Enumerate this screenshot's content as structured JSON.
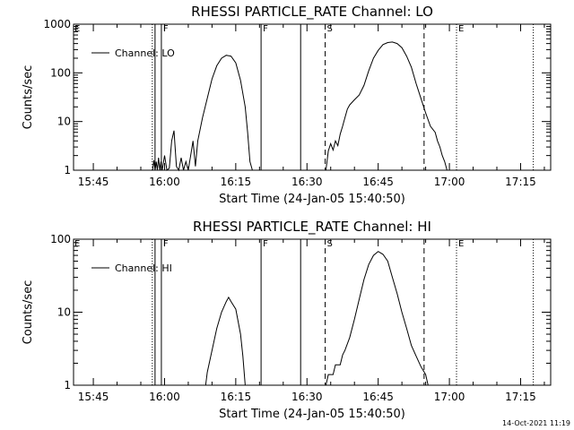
{
  "footer": {
    "timestamp": "14-Oct-2021 11:19"
  },
  "chart_data": [
    {
      "type": "line",
      "title": "RHESSI PARTICLE_RATE Channel: LO",
      "xlabel": "Start Time (24-Jan-05 15:40:50)",
      "ylabel": "Counts/sec",
      "yscale": "log",
      "xlim": [
        "15:40:50",
        "17:21:20"
      ],
      "ylim": [
        1,
        1000
      ],
      "x_ticks": [
        "15:45",
        "16:00",
        "16:15",
        "16:30",
        "16:45",
        "17:00",
        "17:15"
      ],
      "y_ticks": [
        "1",
        "10",
        "100",
        "1000"
      ],
      "legend": {
        "position": "top-left",
        "entries": [
          "Channel: LO"
        ]
      },
      "series": [
        {
          "name": "Channel: LO",
          "points": [
            [
              "15:57:30",
              1.0
            ],
            [
              "15:57:45",
              1.6
            ],
            [
              "15:58:00",
              1.0
            ],
            [
              "15:58:15",
              1.5
            ],
            [
              "15:58:30",
              1.0
            ],
            [
              "15:58:45",
              1.8
            ],
            [
              "15:59:00",
              1.0
            ],
            [
              "15:59:15",
              1.5
            ],
            [
              "15:59:30",
              1.0
            ],
            [
              "16:00:00",
              2.0
            ],
            [
              "16:00:30",
              1.0
            ],
            [
              "16:01:00",
              1.1
            ],
            [
              "16:01:30",
              4.0
            ],
            [
              "16:02:00",
              6.5
            ],
            [
              "16:02:30",
              1.2
            ],
            [
              "16:03:00",
              1.0
            ],
            [
              "16:03:30",
              1.8
            ],
            [
              "16:04:00",
              1.0
            ],
            [
              "16:04:30",
              1.5
            ],
            [
              "16:05:00",
              1.0
            ],
            [
              "16:05:30",
              2.0
            ],
            [
              "16:06:00",
              4.0
            ],
            [
              "16:06:30",
              1.2
            ],
            [
              "16:07:00",
              4.0
            ],
            [
              "16:08:00",
              12
            ],
            [
              "16:09:00",
              30
            ],
            [
              "16:10:00",
              75
            ],
            [
              "16:11:00",
              140
            ],
            [
              "16:12:00",
              200
            ],
            [
              "16:13:00",
              230
            ],
            [
              "16:14:00",
              220
            ],
            [
              "16:15:00",
              160
            ],
            [
              "16:16:00",
              70
            ],
            [
              "16:17:00",
              20
            ],
            [
              "16:17:30",
              6
            ],
            [
              "16:18:00",
              1.5
            ],
            [
              "16:18:30",
              1.0
            ]
          ]
        },
        {
          "name": "Channel: LO",
          "points": [
            [
              "16:34:00",
              1.0
            ],
            [
              "16:34:30",
              2.5
            ],
            [
              "16:35:00",
              3.5
            ],
            [
              "16:35:30",
              2.6
            ],
            [
              "16:36:00",
              4.0
            ],
            [
              "16:36:30",
              3.2
            ],
            [
              "16:37:00",
              5.5
            ],
            [
              "16:37:30",
              8
            ],
            [
              "16:38:00",
              12
            ],
            [
              "16:38:30",
              18
            ],
            [
              "16:39:00",
              22
            ],
            [
              "16:40:00",
              28
            ],
            [
              "16:41:00",
              35
            ],
            [
              "16:42:00",
              55
            ],
            [
              "16:43:00",
              110
            ],
            [
              "16:44:00",
              200
            ],
            [
              "16:45:00",
              290
            ],
            [
              "16:46:00",
              380
            ],
            [
              "16:47:00",
              420
            ],
            [
              "16:48:00",
              430
            ],
            [
              "16:49:00",
              400
            ],
            [
              "16:50:00",
              330
            ],
            [
              "16:51:00",
              220
            ],
            [
              "16:52:00",
              130
            ],
            [
              "16:53:00",
              60
            ],
            [
              "16:54:00",
              30
            ],
            [
              "16:55:00",
              15
            ],
            [
              "16:56:00",
              8
            ],
            [
              "16:57:00",
              6
            ],
            [
              "16:57:30",
              4
            ],
            [
              "16:58:00",
              3
            ],
            [
              "16:58:30",
              2
            ],
            [
              "16:59:00",
              1.5
            ],
            [
              "16:59:30",
              1.0
            ]
          ]
        }
      ],
      "markers": [
        {
          "time": "15:57:25",
          "style": "dotted",
          "label": ""
        },
        {
          "time": "15:58:00",
          "style": "solid",
          "label": ""
        },
        {
          "time": "15:59:20",
          "style": "solid",
          "label": "F"
        },
        {
          "time": "16:20:20",
          "style": "solid",
          "label": "F"
        },
        {
          "time": "16:28:40",
          "style": "solid",
          "label": ""
        },
        {
          "time": "16:33:50",
          "style": "dashed",
          "label": "S"
        },
        {
          "time": "16:54:40",
          "style": "dashed",
          "label": ""
        },
        {
          "time": "17:01:30",
          "style": "dotted",
          "label": "E"
        },
        {
          "time": "17:17:40",
          "style": "dotted",
          "label": ""
        }
      ],
      "edge_labels": [
        "E"
      ]
    },
    {
      "type": "line",
      "title": "RHESSI PARTICLE_RATE Channel: HI",
      "xlabel": "Start Time (24-Jan-05 15:40:50)",
      "ylabel": "Counts/sec",
      "yscale": "log",
      "xlim": [
        "15:40:50",
        "17:21:20"
      ],
      "ylim": [
        1,
        100
      ],
      "x_ticks": [
        "15:45",
        "16:00",
        "16:15",
        "16:30",
        "16:45",
        "17:00",
        "17:15"
      ],
      "y_ticks": [
        "1",
        "10",
        "100"
      ],
      "legend": {
        "position": "top-left",
        "entries": [
          "Channel: HI"
        ]
      },
      "series": [
        {
          "name": "Channel: HI",
          "points": [
            [
              "16:08:40",
              1.0
            ],
            [
              "16:09:00",
              1.5
            ],
            [
              "16:10:00",
              3.0
            ],
            [
              "16:11:00",
              6.0
            ],
            [
              "16:12:00",
              10
            ],
            [
              "16:13:00",
              14
            ],
            [
              "16:13:30",
              16
            ],
            [
              "16:14:00",
              14
            ],
            [
              "16:15:00",
              11
            ],
            [
              "16:16:00",
              5
            ],
            [
              "16:16:30",
              2.5
            ],
            [
              "16:17:00",
              1.0
            ]
          ]
        },
        {
          "name": "Channel: HI",
          "points": [
            [
              "16:34:00",
              1.0
            ],
            [
              "16:34:30",
              1.4
            ],
            [
              "16:35:30",
              1.4
            ],
            [
              "16:36:00",
              1.9
            ],
            [
              "16:37:00",
              1.9
            ],
            [
              "16:37:30",
              2.6
            ],
            [
              "16:38:00",
              3.0
            ],
            [
              "16:39:00",
              4.5
            ],
            [
              "16:40:00",
              8
            ],
            [
              "16:41:00",
              15
            ],
            [
              "16:42:00",
              28
            ],
            [
              "16:43:00",
              45
            ],
            [
              "16:44:00",
              60
            ],
            [
              "16:45:00",
              68
            ],
            [
              "16:46:00",
              62
            ],
            [
              "16:47:00",
              50
            ],
            [
              "16:48:00",
              30
            ],
            [
              "16:49:00",
              18
            ],
            [
              "16:50:00",
              10
            ],
            [
              "16:51:00",
              6
            ],
            [
              "16:52:00",
              3.5
            ],
            [
              "16:53:00",
              2.5
            ],
            [
              "16:54:00",
              1.8
            ],
            [
              "16:55:00",
              1.4
            ],
            [
              "16:55:30",
              1.0
            ]
          ]
        }
      ],
      "markers": [
        {
          "time": "15:57:25",
          "style": "dotted",
          "label": ""
        },
        {
          "time": "15:58:00",
          "style": "solid",
          "label": ""
        },
        {
          "time": "15:59:20",
          "style": "solid",
          "label": "F"
        },
        {
          "time": "16:20:20",
          "style": "solid",
          "label": "F"
        },
        {
          "time": "16:28:40",
          "style": "solid",
          "label": ""
        },
        {
          "time": "16:33:50",
          "style": "dashed",
          "label": "S"
        },
        {
          "time": "16:54:40",
          "style": "dashed",
          "label": ""
        },
        {
          "time": "17:01:30",
          "style": "dotted",
          "label": "E"
        },
        {
          "time": "17:17:40",
          "style": "dotted",
          "label": ""
        }
      ],
      "edge_labels": [
        "E"
      ]
    }
  ]
}
